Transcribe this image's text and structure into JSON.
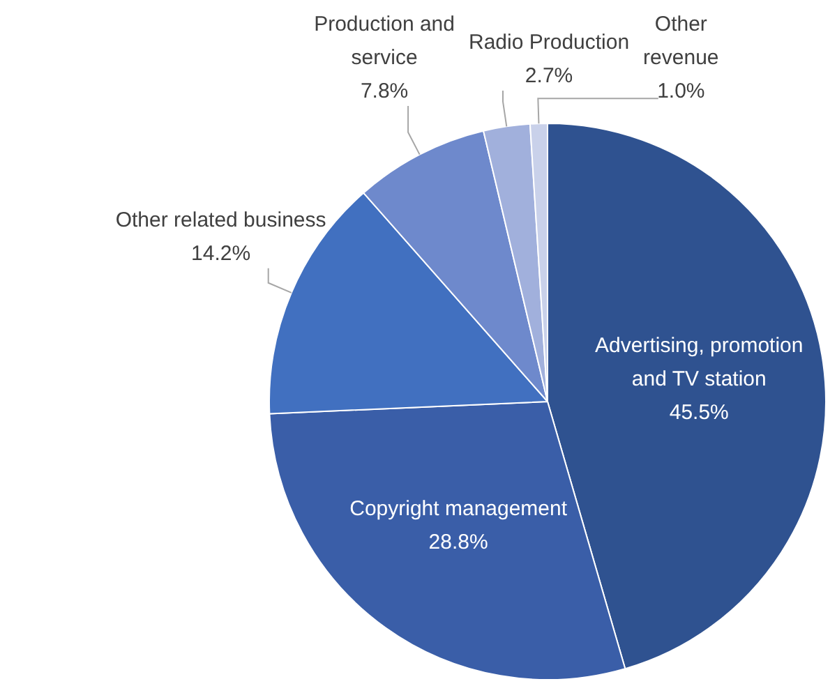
{
  "chart_data": {
    "type": "pie",
    "categories": [
      "Advertising, promotion and TV station",
      "Copyright management",
      "Other related business",
      "Production and service",
      "Radio Production",
      "Other revenue"
    ],
    "values": [
      45.5,
      28.8,
      14.2,
      7.8,
      2.7,
      1.0
    ],
    "value_labels": [
      "45.5%",
      "28.8%",
      "14.2%",
      "7.8%",
      "2.7%",
      "1.0%"
    ],
    "colors": [
      "#2f5290",
      "#3a5ea8",
      "#4170c0",
      "#6e89cc",
      "#a1b0dc",
      "#c9d1ea"
    ],
    "legend": false
  }
}
